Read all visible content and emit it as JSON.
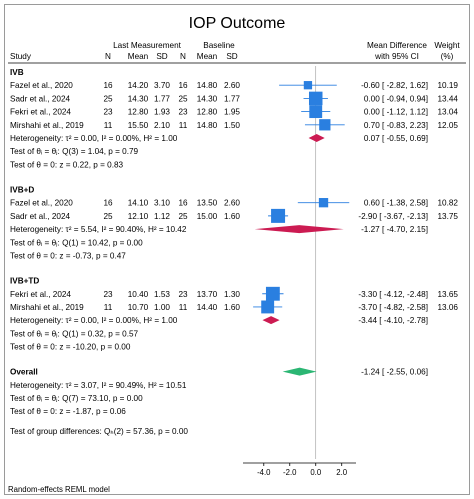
{
  "chart_data": {
    "type": "forest",
    "title": "IOP Outcome",
    "headers": {
      "study": "Study",
      "group_last": "Last Measurement",
      "group_base": "Baseline",
      "n": "N",
      "mean": "Mean",
      "sd": "SD",
      "md": "Mean Difference",
      "ci": "with 95% CI",
      "weight": "Weight",
      "weight_unit": "(%)"
    },
    "x_ticks": [
      -4.0,
      -2.0,
      0.0,
      2.0
    ],
    "x_tick_labels": [
      "-4.0",
      "-2.0",
      "0.0",
      "2.0"
    ],
    "xlim": [
      -5.6,
      3.1
    ],
    "subgroups": [
      {
        "name": "IVB",
        "studies": [
          {
            "study": "Fazel et al., 2020",
            "n1": "16",
            "mean1": "14.20",
            "sd1": "3.70",
            "n2": "16",
            "mean2": "14.80",
            "sd2": "2.60",
            "md": -0.6,
            "lo": -2.82,
            "hi": 1.62,
            "ci_text": "-0.60 [ -2.82,   1.62]",
            "weight": 10.19,
            "weight_text": "10.19"
          },
          {
            "study": "Sadr et al., 2024",
            "n1": "25",
            "mean1": "14.30",
            "sd1": "1.77",
            "n2": "25",
            "mean2": "14.30",
            "sd2": "1.77",
            "md": 0.0,
            "lo": -0.94,
            "hi": 0.94,
            "ci_text": "0.00 [ -0.94,   0.94]",
            "weight": 13.44,
            "weight_text": "13.44"
          },
          {
            "study": "Fekri et al., 2024",
            "n1": "23",
            "mean1": "12.80",
            "sd1": "1.93",
            "n2": "23",
            "mean2": "12.80",
            "sd2": "1.95",
            "md": 0.0,
            "lo": -1.12,
            "hi": 1.12,
            "ci_text": "0.00 [ -1.12,   1.12]",
            "weight": 13.04,
            "weight_text": "13.04"
          },
          {
            "study": "Mirshahi et al., 2019",
            "n1": "11",
            "mean1": "15.50",
            "sd1": "2.10",
            "n2": "11",
            "mean2": "14.80",
            "sd2": "1.50",
            "md": 0.7,
            "lo": -0.83,
            "hi": 2.23,
            "ci_text": "0.70 [ -0.83,   2.23]",
            "weight": 12.05,
            "weight_text": "12.05"
          }
        ],
        "heterogeneity": "Heterogeneity: τ² = 0.00, I² = 0.00%, H² = 1.00",
        "pooled": {
          "md": 0.07,
          "lo": -0.55,
          "hi": 0.69,
          "ci_text": "0.07 [ -0.55,   0.69]"
        },
        "test_equal": "Test of θᵢ = θⱼ: Q(3) = 1.04, p = 0.79",
        "test_zero": "Test of θ = 0: z = 0.22, p = 0.83"
      },
      {
        "name": "IVB+D",
        "studies": [
          {
            "study": "Fazel et al., 2020",
            "n1": "16",
            "mean1": "14.10",
            "sd1": "3.10",
            "n2": "16",
            "mean2": "13.50",
            "sd2": "2.60",
            "md": 0.6,
            "lo": -1.38,
            "hi": 2.58,
            "ci_text": "0.60 [ -1.38,   2.58]",
            "weight": 10.82,
            "weight_text": "10.82"
          },
          {
            "study": "Sadr et al., 2024",
            "n1": "25",
            "mean1": "12.10",
            "sd1": "1.12",
            "n2": "25",
            "mean2": "15.00",
            "sd2": "1.60",
            "md": -2.9,
            "lo": -3.67,
            "hi": -2.13,
            "ci_text": "-2.90 [ -3.67,  -2.13]",
            "weight": 13.75,
            "weight_text": "13.75"
          }
        ],
        "heterogeneity": "Heterogeneity: τ² = 5.54, I² = 90.40%, H² = 10.42",
        "pooled": {
          "md": -1.27,
          "lo": -4.7,
          "hi": 2.15,
          "ci_text": "-1.27 [ -4.70,   2.15]"
        },
        "test_equal": "Test of θᵢ = θⱼ: Q(1) = 10.42, p = 0.00",
        "test_zero": "Test of θ = 0: z = -0.73, p = 0.47"
      },
      {
        "name": "IVB+TD",
        "studies": [
          {
            "study": "Fekri et al., 2024",
            "n1": "23",
            "mean1": "10.40",
            "sd1": "1.53",
            "n2": "23",
            "mean2": "13.70",
            "sd2": "1.30",
            "md": -3.3,
            "lo": -4.12,
            "hi": -2.48,
            "ci_text": "-3.30 [ -4.12,  -2.48]",
            "weight": 13.65,
            "weight_text": "13.65"
          },
          {
            "study": "Mirshahi et al., 2019",
            "n1": "11",
            "mean1": "10.70",
            "sd1": "1.00",
            "n2": "11",
            "mean2": "14.40",
            "sd2": "1.60",
            "md": -3.7,
            "lo": -4.82,
            "hi": -2.58,
            "ci_text": "-3.70 [ -4.82,  -2.58]",
            "weight": 13.06,
            "weight_text": "13.06"
          }
        ],
        "heterogeneity": "Heterogeneity: τ² = 0.00, I² = 0.00%, H² = 1.00",
        "pooled": {
          "md": -3.44,
          "lo": -4.1,
          "hi": -2.78,
          "ci_text": "-3.44 [ -4.10,  -2.78]"
        },
        "test_equal": "Test of θᵢ = θⱼ: Q(1) = 0.32, p = 0.57",
        "test_zero": "Test of θ = 0: z = -10.20, p = 0.00"
      }
    ],
    "overall": {
      "name": "Overall",
      "md": -1.24,
      "lo": -2.55,
      "hi": 0.06,
      "ci_text": "-1.24 [ -2.55,   0.06]",
      "heterogeneity": "Heterogeneity: τ² = 3.07, I² = 90.49%, H² = 10.51",
      "test_equal": "Test of θᵢ = θⱼ: Q(7) = 73.10, p = 0.00",
      "test_zero": "Test of θ = 0: z = -1.87, p = 0.06"
    },
    "group_test": "Test of group differences: Qₕ(2) = 57.36, p = 0.00",
    "footnote": "Random-effects REML model",
    "colors": {
      "study_marker": "#2a7fe0",
      "subgroup_diamond": "#cc1b52",
      "overall_diamond": "#2bb673"
    }
  }
}
